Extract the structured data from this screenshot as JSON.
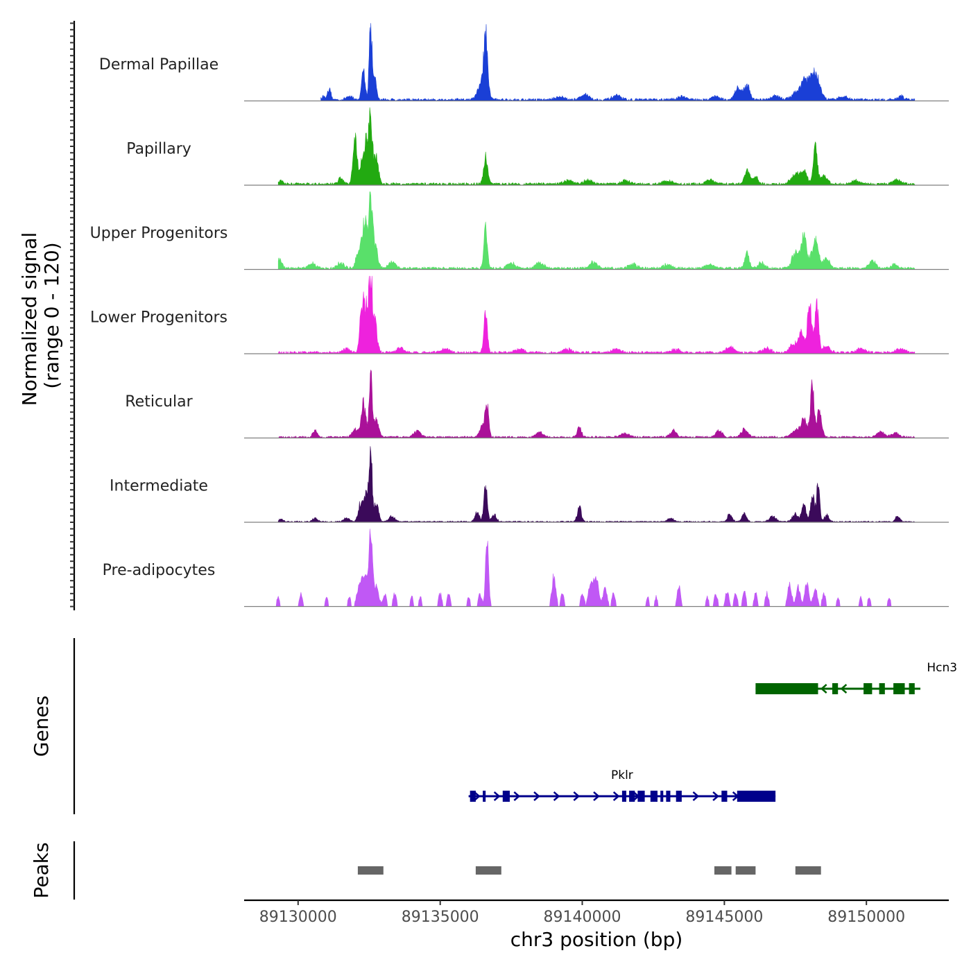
{
  "chart_data": {
    "type": "area",
    "region": {
      "chrom": "chr3",
      "start": 89128100,
      "end": 89152900
    },
    "data_extent": [
      89129200,
      89151800
    ],
    "xlabel": "chr3 position (bp)",
    "x_ticks": [
      {
        "value": 89130000,
        "label": "89130000"
      },
      {
        "value": 89135000,
        "label": "89135000"
      },
      {
        "value": 89140000,
        "label": "89140000"
      },
      {
        "value": 89145000,
        "label": "89145000"
      },
      {
        "value": 89150000,
        "label": "89150000"
      }
    ],
    "ylabel": "Normalized signal",
    "ylabel_sub": "(range 0 - 120)",
    "ylim": [
      0,
      120
    ],
    "series": [
      {
        "name": "Dermal Papillae",
        "color": "#1a3fd6",
        "sparse": false,
        "range": [
          89130800,
          89151700
        ],
        "base": 4,
        "peaks": [
          [
            89130600,
            3,
            80
          ],
          [
            89130900,
            5,
            80
          ],
          [
            89131100,
            14,
            60
          ],
          [
            89131800,
            6,
            100
          ],
          [
            89132300,
            45,
            60
          ],
          [
            89132550,
            112,
            50
          ],
          [
            89132700,
            30,
            60
          ],
          [
            89136600,
            78,
            60
          ],
          [
            89136500,
            28,
            150
          ],
          [
            89139200,
            5,
            150
          ],
          [
            89140100,
            8,
            150
          ],
          [
            89141200,
            6,
            150
          ],
          [
            89143500,
            5,
            150
          ],
          [
            89144700,
            6,
            120
          ],
          [
            89145500,
            18,
            120
          ],
          [
            89145800,
            22,
            90
          ],
          [
            89146800,
            6,
            150
          ],
          [
            89147500,
            10,
            150
          ],
          [
            89147800,
            30,
            120
          ],
          [
            89148100,
            33,
            120
          ],
          [
            89148300,
            22,
            120
          ],
          [
            89149200,
            5,
            150
          ],
          [
            89151200,
            6,
            100
          ]
        ]
      },
      {
        "name": "Papillary",
        "color": "#22aa11",
        "sparse": false,
        "range": [
          89129300,
          89151700
        ],
        "base": 4,
        "peaks": [
          [
            89129400,
            6,
            80
          ],
          [
            89131500,
            8,
            100
          ],
          [
            89132000,
            72,
            70
          ],
          [
            89132250,
            35,
            70
          ],
          [
            89132400,
            60,
            70
          ],
          [
            89132550,
            100,
            60
          ],
          [
            89132750,
            40,
            80
          ],
          [
            89136600,
            40,
            70
          ],
          [
            89139500,
            5,
            150
          ],
          [
            89140200,
            6,
            150
          ],
          [
            89141500,
            5,
            150
          ],
          [
            89143000,
            5,
            150
          ],
          [
            89144500,
            6,
            150
          ],
          [
            89145800,
            20,
            90
          ],
          [
            89146100,
            10,
            100
          ],
          [
            89147500,
            14,
            150
          ],
          [
            89147800,
            20,
            120
          ],
          [
            89148200,
            55,
            70
          ],
          [
            89148500,
            12,
            120
          ],
          [
            89149600,
            5,
            150
          ],
          [
            89151100,
            6,
            150
          ]
        ]
      },
      {
        "name": "Upper Progenitors",
        "color": "#59e06a",
        "sparse": false,
        "range": [
          89129300,
          89151700
        ],
        "base": 4,
        "peaks": [
          [
            89129350,
            14,
            80
          ],
          [
            89130500,
            8,
            120
          ],
          [
            89131500,
            8,
            120
          ],
          [
            89132150,
            28,
            100
          ],
          [
            89132350,
            70,
            80
          ],
          [
            89132550,
            110,
            60
          ],
          [
            89132700,
            35,
            90
          ],
          [
            89133300,
            10,
            130
          ],
          [
            89136600,
            60,
            60
          ],
          [
            89137500,
            8,
            140
          ],
          [
            89138500,
            8,
            140
          ],
          [
            89140400,
            10,
            120
          ],
          [
            89141800,
            6,
            150
          ],
          [
            89143000,
            6,
            150
          ],
          [
            89144500,
            6,
            150
          ],
          [
            89145800,
            22,
            80
          ],
          [
            89146300,
            8,
            120
          ],
          [
            89147500,
            22,
            130
          ],
          [
            89147800,
            45,
            110
          ],
          [
            89148200,
            42,
            110
          ],
          [
            89148600,
            14,
            120
          ],
          [
            89150200,
            12,
            120
          ],
          [
            89151000,
            6,
            100
          ]
        ]
      },
      {
        "name": "Lower Progenitors",
        "color": "#ee22dd",
        "sparse": false,
        "range": [
          89129300,
          89151700
        ],
        "base": 4,
        "peaks": [
          [
            89131700,
            6,
            130
          ],
          [
            89132250,
            70,
            70
          ],
          [
            89132400,
            62,
            70
          ],
          [
            89132550,
            105,
            60
          ],
          [
            89132700,
            48,
            80
          ],
          [
            89133600,
            8,
            130
          ],
          [
            89135200,
            5,
            150
          ],
          [
            89136600,
            65,
            60
          ],
          [
            89137800,
            5,
            150
          ],
          [
            89139500,
            5,
            150
          ],
          [
            89141200,
            5,
            150
          ],
          [
            89143300,
            5,
            150
          ],
          [
            89145200,
            8,
            150
          ],
          [
            89146500,
            6,
            150
          ],
          [
            89147400,
            12,
            120
          ],
          [
            89147700,
            30,
            110
          ],
          [
            89148000,
            80,
            70
          ],
          [
            89148250,
            70,
            70
          ],
          [
            89148600,
            10,
            120
          ],
          [
            89149800,
            6,
            150
          ],
          [
            89151200,
            6,
            150
          ]
        ]
      },
      {
        "name": "Reticular",
        "color": "#aa1199",
        "sparse": false,
        "range": [
          89129300,
          89151700
        ],
        "base": 3,
        "peaks": [
          [
            89130600,
            10,
            80
          ],
          [
            89132000,
            12,
            100
          ],
          [
            89132300,
            50,
            80
          ],
          [
            89132550,
            110,
            50
          ],
          [
            89132750,
            30,
            80
          ],
          [
            89134200,
            8,
            130
          ],
          [
            89136500,
            20,
            100
          ],
          [
            89136650,
            45,
            60
          ],
          [
            89138500,
            8,
            120
          ],
          [
            89139900,
            15,
            70
          ],
          [
            89141500,
            6,
            150
          ],
          [
            89143200,
            10,
            120
          ],
          [
            89144800,
            10,
            120
          ],
          [
            89145700,
            12,
            120
          ],
          [
            89147500,
            12,
            130
          ],
          [
            89147800,
            25,
            110
          ],
          [
            89148100,
            75,
            70
          ],
          [
            89148350,
            40,
            80
          ],
          [
            89150500,
            8,
            120
          ],
          [
            89151000,
            6,
            150
          ]
        ]
      },
      {
        "name": "Intermediate",
        "color": "#3b0a5a",
        "sparse": false,
        "range": [
          89129300,
          89151700
        ],
        "base": 2,
        "peaks": [
          [
            89129400,
            4,
            80
          ],
          [
            89130600,
            6,
            80
          ],
          [
            89131700,
            6,
            100
          ],
          [
            89132200,
            28,
            80
          ],
          [
            89132400,
            40,
            70
          ],
          [
            89132550,
            103,
            55
          ],
          [
            89132750,
            28,
            80
          ],
          [
            89133300,
            8,
            100
          ],
          [
            89136300,
            14,
            80
          ],
          [
            89136600,
            55,
            60
          ],
          [
            89136900,
            10,
            80
          ],
          [
            89139900,
            22,
            70
          ],
          [
            89143100,
            6,
            100
          ],
          [
            89145200,
            12,
            80
          ],
          [
            89145700,
            12,
            80
          ],
          [
            89146700,
            8,
            120
          ],
          [
            89147500,
            12,
            100
          ],
          [
            89147800,
            28,
            70
          ],
          [
            89148100,
            40,
            70
          ],
          [
            89148300,
            55,
            55
          ],
          [
            89148600,
            10,
            80
          ],
          [
            89151100,
            8,
            80
          ]
        ]
      },
      {
        "name": "Pre-adipocytes",
        "color": "#c058f5",
        "sparse": true,
        "range": [
          89129200,
          89151000
        ],
        "base": 0,
        "peaks": [
          [
            89129300,
            15,
            50
          ],
          [
            89130100,
            20,
            50
          ],
          [
            89131000,
            15,
            50
          ],
          [
            89131800,
            15,
            50
          ],
          [
            89132150,
            28,
            90
          ],
          [
            89132350,
            45,
            90
          ],
          [
            89132550,
            115,
            60
          ],
          [
            89132750,
            30,
            90
          ],
          [
            89133050,
            20,
            60
          ],
          [
            89133400,
            20,
            60
          ],
          [
            89134000,
            15,
            50
          ],
          [
            89134300,
            15,
            50
          ],
          [
            89135000,
            20,
            60
          ],
          [
            89135300,
            20,
            60
          ],
          [
            89136000,
            15,
            50
          ],
          [
            89136400,
            20,
            60
          ],
          [
            89136650,
            100,
            55
          ],
          [
            89139000,
            45,
            70
          ],
          [
            89139300,
            20,
            60
          ],
          [
            89140000,
            20,
            60
          ],
          [
            89140300,
            35,
            80
          ],
          [
            89140500,
            45,
            80
          ],
          [
            89140800,
            30,
            70
          ],
          [
            89141100,
            20,
            60
          ],
          [
            89142300,
            15,
            50
          ],
          [
            89142600,
            15,
            50
          ],
          [
            89143400,
            30,
            60
          ],
          [
            89144400,
            15,
            50
          ],
          [
            89144700,
            20,
            60
          ],
          [
            89145100,
            25,
            60
          ],
          [
            89145400,
            20,
            60
          ],
          [
            89145700,
            22,
            60
          ],
          [
            89146100,
            20,
            60
          ],
          [
            89146500,
            20,
            60
          ],
          [
            89147300,
            35,
            70
          ],
          [
            89147600,
            30,
            70
          ],
          [
            89147900,
            35,
            70
          ],
          [
            89148200,
            30,
            70
          ],
          [
            89148500,
            20,
            60
          ],
          [
            89149000,
            15,
            50
          ],
          [
            89149800,
            15,
            50
          ],
          [
            89150100,
            15,
            50
          ],
          [
            89150800,
            15,
            50
          ]
        ]
      }
    ],
    "genes_track_label": "Genes",
    "genes": [
      {
        "name": "Hcn3",
        "strand": "-",
        "color": "#006400",
        "start": 89146100,
        "end": 89151900,
        "exons": [
          [
            89146100,
            89148300
          ],
          [
            89148800,
            89149000
          ],
          [
            89149900,
            89150200
          ],
          [
            89150450,
            89150650
          ],
          [
            89150950,
            89151350
          ],
          [
            89151500,
            89151700
          ]
        ]
      },
      {
        "name": "Pklr",
        "strand": "+",
        "color": "#00008b",
        "start": 89136000,
        "end": 89146800,
        "exons": [
          [
            89136050,
            89136250
          ],
          [
            89136500,
            89136600
          ],
          [
            89137200,
            89137450
          ],
          [
            89141400,
            89141550
          ],
          [
            89141650,
            89141850
          ],
          [
            89141950,
            89142200
          ],
          [
            89142400,
            89142650
          ],
          [
            89142750,
            89142850
          ],
          [
            89142950,
            89143100
          ],
          [
            89143300,
            89143500
          ],
          [
            89144900,
            89145100
          ],
          [
            89145450,
            89146800
          ]
        ]
      }
    ],
    "peaks_track_label": "Peaks",
    "peaks": [
      [
        89132100,
        89133000
      ],
      [
        89136250,
        89137150
      ],
      [
        89144650,
        89145250
      ],
      [
        89145400,
        89146100
      ],
      [
        89147500,
        89148400
      ]
    ]
  }
}
